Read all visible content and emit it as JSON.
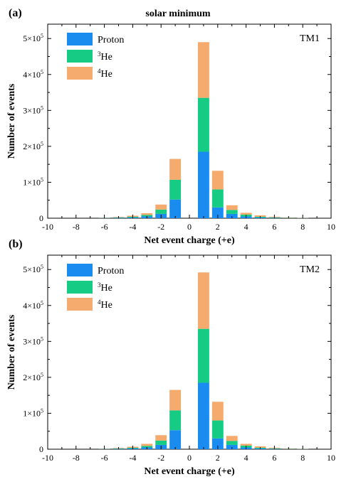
{
  "colors": {
    "proton": "#1a8cf0",
    "he3": "#16cc84",
    "he4": "#f5aa6e",
    "axis": "#000000"
  },
  "chart_data": [
    {
      "type": "bar",
      "stacked": true,
      "panel_label": "(a)",
      "title": "solar minimum",
      "annotation": "TM1",
      "xlabel": "Net event charge (+e)",
      "ylabel": "Number of events",
      "xlim": [
        -10,
        10
      ],
      "ylim": [
        0,
        540000
      ],
      "x_ticks": [
        "-10",
        "-8",
        "-6",
        "-4",
        "-2",
        "0",
        "2",
        "4",
        "6",
        "8",
        "10"
      ],
      "y_ticks": [
        {
          "value": 0,
          "mant": "0",
          "exp": ""
        },
        {
          "value": 100000,
          "mant": "1×10",
          "exp": "5"
        },
        {
          "value": 200000,
          "mant": "2×10",
          "exp": "5"
        },
        {
          "value": 300000,
          "mant": "3×10",
          "exp": "5"
        },
        {
          "value": 400000,
          "mant": "4×10",
          "exp": "5"
        },
        {
          "value": 500000,
          "mant": "5×10",
          "exp": "5"
        }
      ],
      "legend": [
        {
          "key": "proton",
          "pre": "",
          "sup": "",
          "text": "Proton"
        },
        {
          "key": "he3",
          "pre": "",
          "sup": "3",
          "text": "He"
        },
        {
          "key": "he4",
          "pre": "",
          "sup": "4",
          "text": "He"
        }
      ],
      "legend_position": "top-left",
      "x": [
        -6,
        -5,
        -4,
        -3,
        -2,
        -1,
        1,
        2,
        3,
        4,
        5,
        6,
        7,
        8
      ],
      "series": [
        {
          "key": "proton",
          "name": "Proton",
          "values": [
            500,
            1000,
            2000,
            5000,
            12000,
            52000,
            185000,
            30000,
            12000,
            5000,
            2000,
            1000,
            500,
            300
          ]
        },
        {
          "key": "he3",
          "name": "3He",
          "values": [
            400,
            1000,
            2000,
            4000,
            12000,
            55000,
            150000,
            50000,
            11000,
            5000,
            2000,
            1000,
            500,
            300
          ]
        },
        {
          "key": "he4",
          "name": "4He",
          "values": [
            500,
            1500,
            3000,
            5000,
            14000,
            58000,
            155000,
            52000,
            13000,
            5000,
            4000,
            2000,
            1000,
            400
          ]
        }
      ]
    },
    {
      "type": "bar",
      "stacked": true,
      "panel_label": "(b)",
      "title": "",
      "annotation": "TM2",
      "xlabel": "Net event charge (+e)",
      "ylabel": "Number of events",
      "xlim": [
        -10,
        10
      ],
      "ylim": [
        0,
        540000
      ],
      "x_ticks": [
        "-10",
        "-8",
        "-6",
        "-4",
        "-2",
        "0",
        "2",
        "4",
        "6",
        "8",
        "10"
      ],
      "y_ticks": [
        {
          "value": 0,
          "mant": "0",
          "exp": ""
        },
        {
          "value": 100000,
          "mant": "1×10",
          "exp": "5"
        },
        {
          "value": 200000,
          "mant": "2×10",
          "exp": "5"
        },
        {
          "value": 300000,
          "mant": "3×10",
          "exp": "5"
        },
        {
          "value": 400000,
          "mant": "4×10",
          "exp": "5"
        },
        {
          "value": 500000,
          "mant": "5×10",
          "exp": "5"
        }
      ],
      "legend": [
        {
          "key": "proton",
          "pre": "",
          "sup": "",
          "text": "Proton"
        },
        {
          "key": "he3",
          "pre": "",
          "sup": "3",
          "text": "He"
        },
        {
          "key": "he4",
          "pre": "",
          "sup": "4",
          "text": "He"
        }
      ],
      "legend_position": "top-left",
      "x": [
        -6,
        -5,
        -4,
        -3,
        -2,
        -1,
        1,
        2,
        3,
        4,
        5,
        6,
        7,
        8
      ],
      "series": [
        {
          "key": "proton",
          "name": "Proton",
          "values": [
            500,
            1000,
            2000,
            5000,
            12000,
            53000,
            185000,
            30000,
            12000,
            5000,
            2000,
            1000,
            500,
            300
          ]
        },
        {
          "key": "he3",
          "name": "3He",
          "values": [
            400,
            1000,
            2000,
            4000,
            12000,
            55000,
            150000,
            50000,
            11000,
            5000,
            2000,
            1000,
            500,
            300
          ]
        },
        {
          "key": "he4",
          "name": "4He",
          "values": [
            500,
            1500,
            3000,
            6000,
            15000,
            57000,
            157000,
            52000,
            14000,
            5000,
            4000,
            2000,
            1000,
            400
          ]
        }
      ]
    }
  ]
}
